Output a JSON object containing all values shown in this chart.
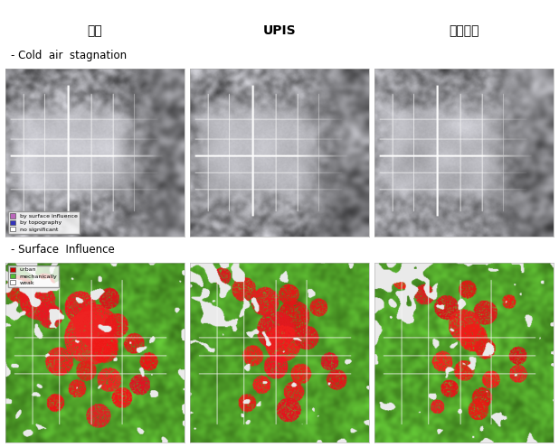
{
  "title_col1": "현재",
  "title_col2": "UPIS",
  "title_col3": "녹지확장",
  "label_cold": "- Cold  air  stagnation",
  "label_surface": "- Surface  Influence",
  "legend_cold": [
    {
      "color": "#bb66bb",
      "label": "by surface influence"
    },
    {
      "color": "#3333bb",
      "label": "by topography"
    },
    {
      "color": "#ffffff",
      "label": "no significant"
    }
  ],
  "legend_surface": [
    {
      "color": "#cc0000",
      "label": "urban"
    },
    {
      "color": "#55bb33",
      "label": "mechanically"
    },
    {
      "color": "#ffffff",
      "label": "weak"
    }
  ],
  "bg_color": "#ffffff",
  "figure_width": 6.18,
  "figure_height": 4.95,
  "dpi": 100
}
